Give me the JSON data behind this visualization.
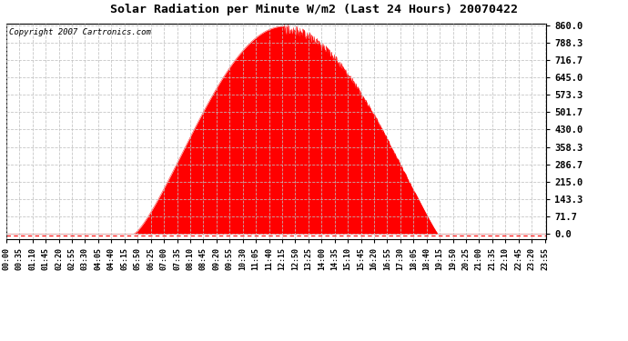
{
  "title": "Solar Radiation per Minute W/m2 (Last 24 Hours) 20070422",
  "copyright": "Copyright 2007 Cartronics.com",
  "fill_color": "#FF0000",
  "line_color": "#FF0000",
  "dashed_line_color": "#FF0000",
  "background_color": "#FFFFFF",
  "grid_color": "#C0C0C0",
  "ytick_labels": [
    "0.0",
    "71.7",
    "143.3",
    "215.0",
    "286.7",
    "358.3",
    "430.0",
    "501.7",
    "573.3",
    "645.0",
    "716.7",
    "788.3",
    "860.0"
  ],
  "ytick_values": [
    0.0,
    71.7,
    143.3,
    215.0,
    286.7,
    358.3,
    430.0,
    501.7,
    573.3,
    645.0,
    716.7,
    788.3,
    860.0
  ],
  "ymax": 860.0,
  "ymin": 0.0,
  "num_minutes": 1440,
  "sunrise_minute": 340,
  "sunset_minute": 1150,
  "peak_minute": 740,
  "peak_value": 855.0,
  "xtick_interval": 35
}
